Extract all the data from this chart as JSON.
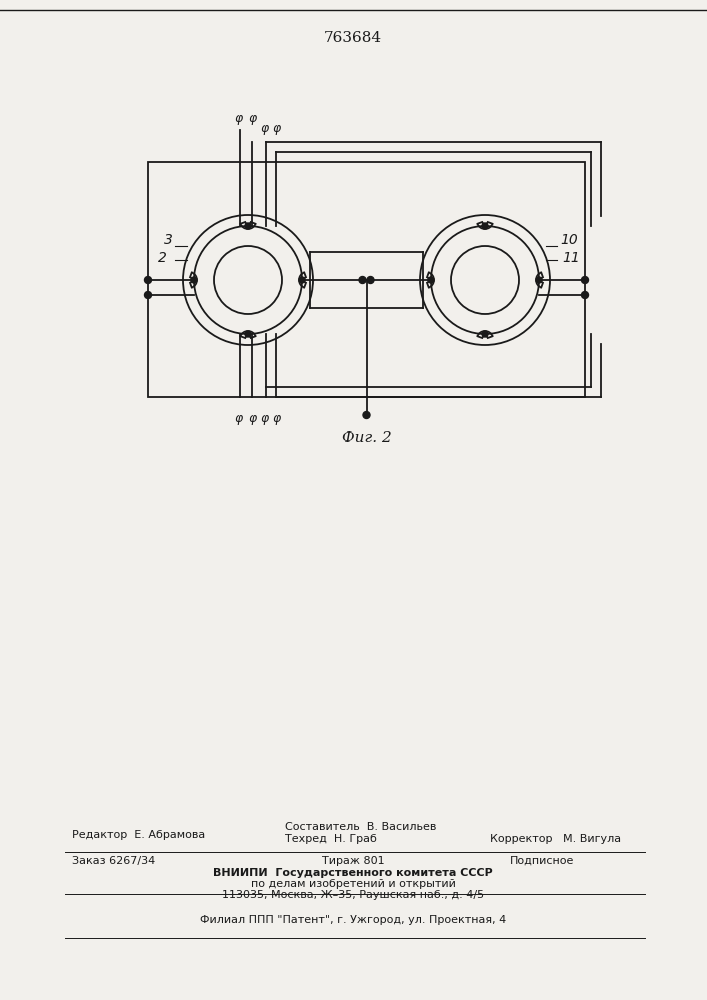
{
  "title": "763684",
  "fig_caption": "Фиг. 2",
  "bg_color": "#f2f0ec",
  "line_color": "#1a1a1a",
  "lw": 1.3,
  "editor_line": "Редактор  Е. Абрамова",
  "compositor_line": "Составитель  В. Васильев",
  "techred_line": "Техред  Н. Граб",
  "corrector_line": "Корректор   М. Вигула",
  "order_line": "Заказ 6267/34",
  "tirazh_line": "Тираж 801",
  "podpisnoe_line": "Подписное",
  "vnipi_line1": "ВНИИПИ  Государственного комитета СССР",
  "vnipi_line2": "по делам изобретений и открытий",
  "vnipi_line3": "113035, Москва, Ж–35, Раушская наб., д. 4/5",
  "filial_line": "Филиал ППП \"Патент\", г. Ужгород, ул. Проектная, 4"
}
